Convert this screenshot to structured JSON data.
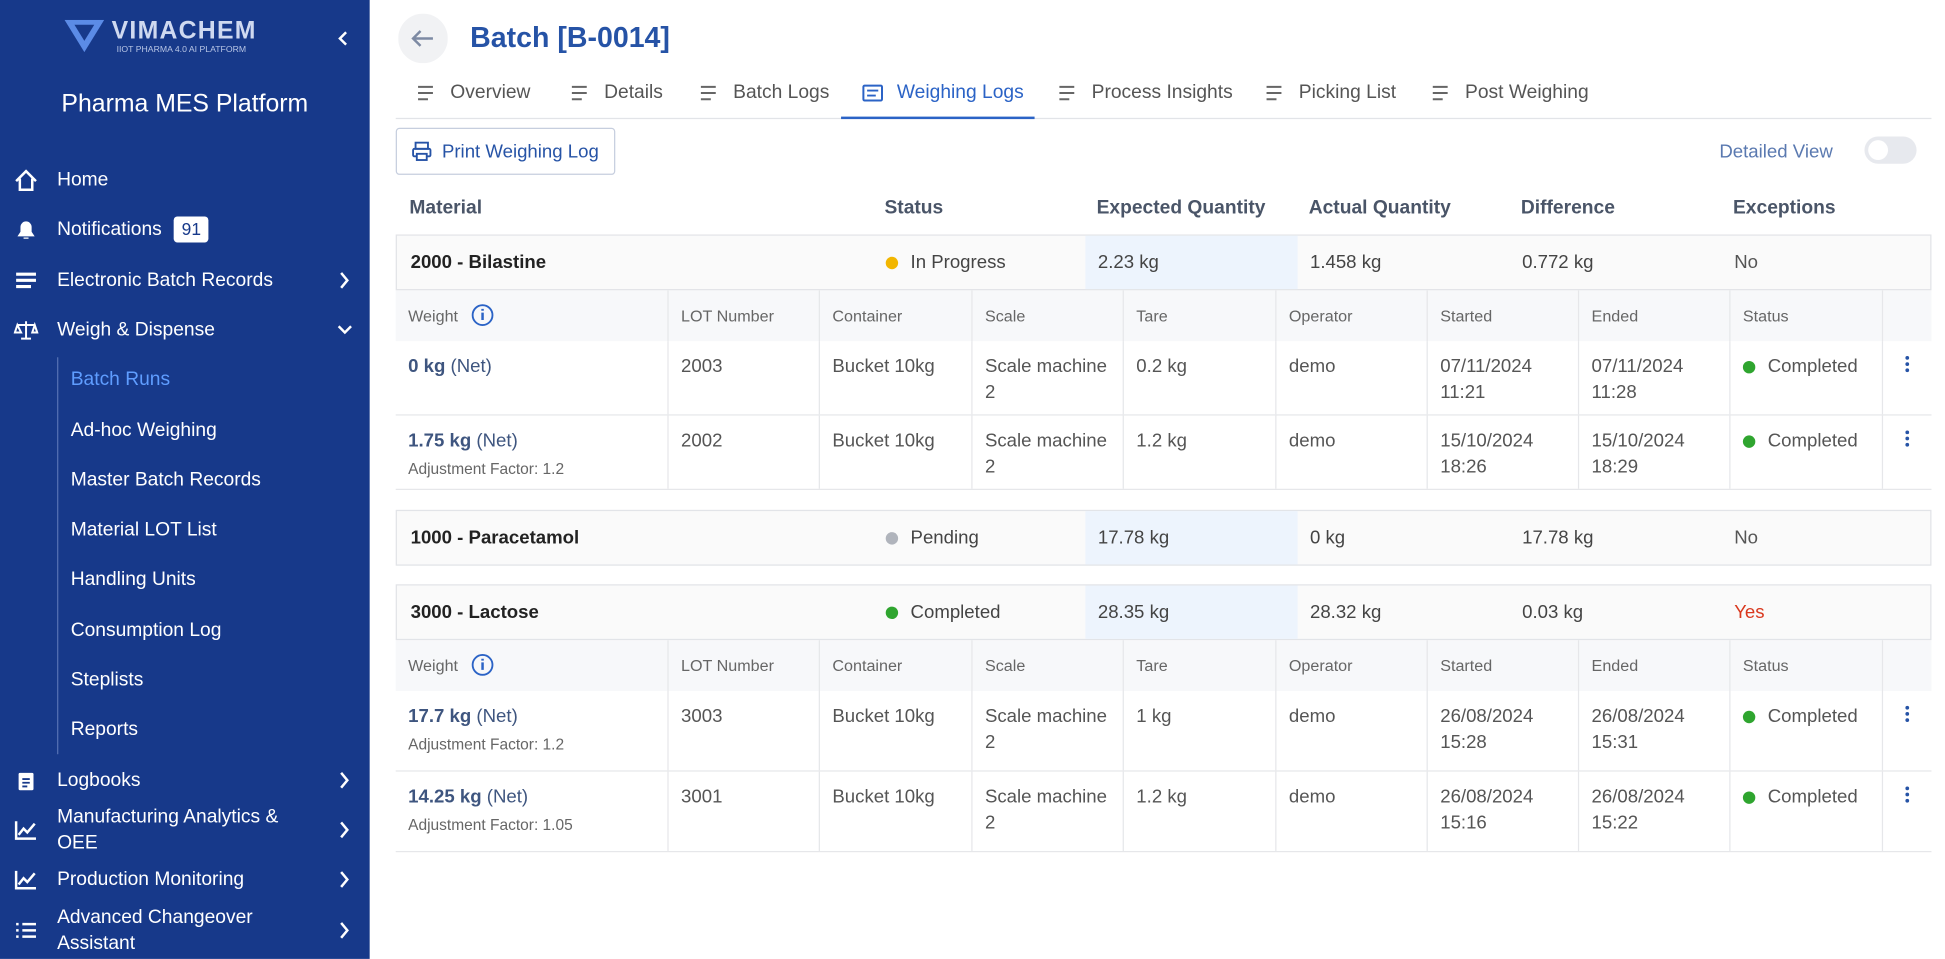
{
  "sidebar": {
    "brand": "VIMACHEM",
    "tagline": "IIOT PHARMA 4.0 AI PLATFORM",
    "title": "Pharma MES Platform",
    "nav": [
      {
        "label": "Home"
      },
      {
        "label": "Notifications",
        "badge": 91
      },
      {
        "label": "Electronic Batch Records"
      },
      {
        "label": "Weigh & Dispense"
      }
    ],
    "submenu": [
      "Batch Runs",
      "Ad-hoc Weighing",
      "Master Batch Records",
      "Material LOT List",
      "Handling Units",
      "Consumption Log",
      "Steplists",
      "Reports"
    ],
    "nav_after": [
      "Logbooks",
      "Manufacturing Analytics & OEE",
      "Production Monitoring",
      "Advanced Changeover Assistant"
    ]
  },
  "header": {
    "title": "Batch [B-0014]",
    "tabs": [
      "Overview",
      "Details",
      "Batch Logs",
      "Weighing Logs",
      "Process Insights",
      "Picking List",
      "Post Weighing"
    ]
  },
  "toolbar": {
    "print_button": "Print Weighing Log",
    "toggle_label": "Detailed View"
  },
  "table": {
    "columns": [
      "Material",
      "Status",
      "Expected Quantity",
      "Actual Quantity",
      "Difference",
      "Exceptions"
    ],
    "sub_columns": [
      "Weight",
      "LOT Number",
      "Container",
      "Scale",
      "Tare",
      "Operator",
      "Started",
      "Ended",
      "Status"
    ],
    "groups": [
      {
        "material": "2000 - Bilastine",
        "status": "In Progress",
        "status_color": "#f2b600",
        "expected": "2.23 kg",
        "actual": "1.458 kg",
        "difference": "0.772 kg",
        "exceptions": "No",
        "exceptions_color": "#555555",
        "rows": [
          {
            "weight": "0 kg",
            "weight_suffix": "(Net)",
            "cells": [
              "2003",
              "Bucket 10kg",
              "Scale machine 2",
              "0.2 kg",
              "demo",
              "07/11/2024 11:21",
              "07/11/2024 11:28",
              "Completed"
            ]
          },
          {
            "weight": "1.75 kg",
            "weight_suffix": "(Net)",
            "adjustment": "Adjustment Factor: 1.2",
            "cells": [
              "2002",
              "Bucket 10kg",
              "Scale machine 2",
              "1.2 kg",
              "demo",
              "15/10/2024 18:26",
              "15/10/2024 18:29",
              "Completed"
            ]
          }
        ]
      },
      {
        "material": "1000 - Paracetamol",
        "status": "Pending",
        "status_color": "#b0b4bc",
        "expected": "17.78 kg",
        "actual": "0 kg",
        "difference": "17.78 kg",
        "exceptions": "No",
        "exceptions_color": "#555555",
        "rows": []
      },
      {
        "material": "3000 - Lactose",
        "status": "Completed",
        "status_color": "#2fa52f",
        "expected": "28.35 kg",
        "actual": "28.32 kg",
        "difference": "0.03 kg",
        "exceptions": "Yes",
        "exceptions_color": "#d9381e",
        "rows": [
          {
            "weight": "17.7 kg",
            "weight_suffix": "(Net)",
            "adjustment": "Adjustment Factor: 1.2",
            "cells": [
              "3003",
              "Bucket 10kg",
              "Scale machine 2",
              "1 kg",
              "demo",
              "26/08/2024 15:28",
              "26/08/2024 15:31",
              "Completed"
            ]
          },
          {
            "weight": "14.25 kg",
            "weight_suffix": "(Net)",
            "adjustment": "Adjustment Factor: 1.05",
            "cells": [
              "3001",
              "Bucket 10kg",
              "Scale machine 2",
              "1.2 kg",
              "demo",
              "26/08/2024 15:16",
              "26/08/2024 15:22",
              "Completed"
            ]
          }
        ]
      }
    ]
  }
}
